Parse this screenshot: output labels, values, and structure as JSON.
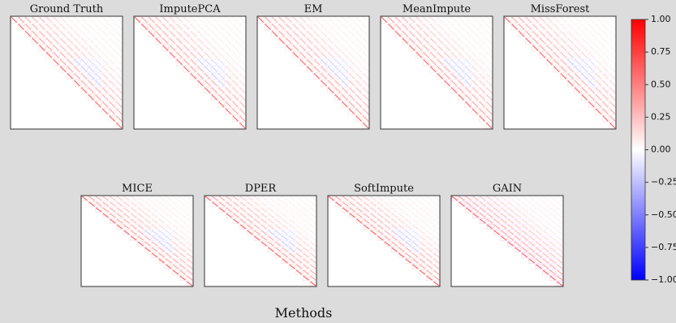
{
  "chart_data": {
    "type": "heatmap-grid",
    "panels": [
      {
        "title": "Ground Truth"
      },
      {
        "title": "ImputePCA"
      },
      {
        "title": "EM"
      },
      {
        "title": "MeanImpute"
      },
      {
        "title": "MissForest"
      },
      {
        "title": "MICE"
      },
      {
        "title": "DPER"
      },
      {
        "title": "SoftImpute"
      },
      {
        "title": "GAIN"
      }
    ],
    "xlabel": "Methods",
    "colorbar": {
      "ylim": [
        -1,
        1
      ],
      "yticks": [
        {
          "value": 1,
          "label": "1.00"
        },
        {
          "value": 0.75,
          "label": "0.75"
        },
        {
          "value": 0.5,
          "label": "0.50"
        },
        {
          "value": 0.25,
          "label": "0.25"
        },
        {
          "value": 0,
          "label": "0.00"
        },
        {
          "value": -0.25,
          "label": "−0.25"
        },
        {
          "value": -0.5,
          "label": "−0.50"
        },
        {
          "value": -0.75,
          "label": "−0.75"
        },
        {
          "value": -1,
          "label": "−1.00"
        }
      ],
      "colors": [
        "#ff0000",
        "#ffffff",
        "#0000ff"
      ]
    }
  }
}
